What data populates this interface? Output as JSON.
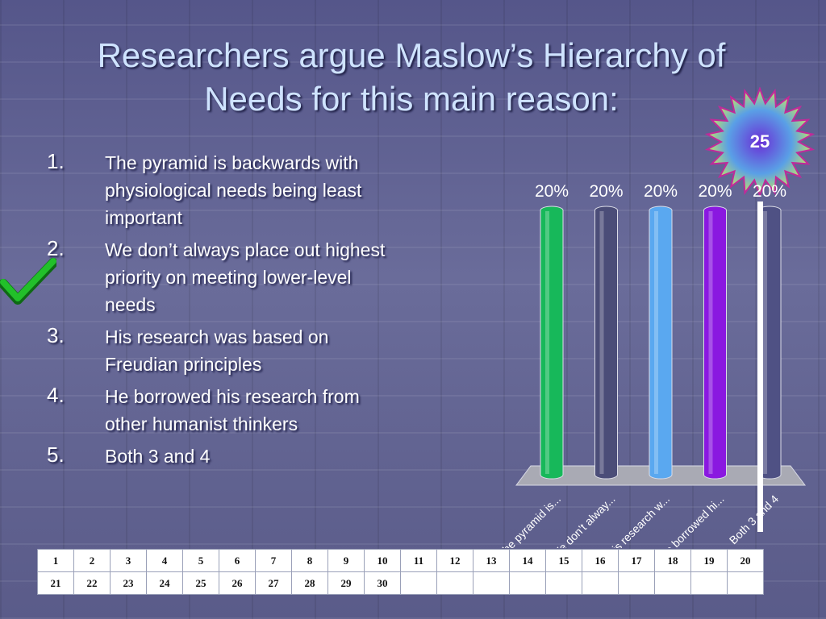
{
  "slide": {
    "title_line1": "Researchers argue Maslow’s Hierarchy of",
    "title_line2": "Needs for this main reason:",
    "countdown": "25",
    "correct_answer": 2,
    "colors": {
      "title": "#cfe3ff",
      "check": "#22c02a",
      "badge": "#6a2fd6"
    }
  },
  "answers": [
    {
      "number": "1.",
      "text": "The pyramid is backwards with physiological needs being least important"
    },
    {
      "number": "2.",
      "text": "We don’t always place out highest priority on meeting lower-level needs"
    },
    {
      "number": "3.",
      "text": "His research was based on Freudian principles"
    },
    {
      "number": "4.",
      "text": "He borrowed his research from other humanist thinkers"
    },
    {
      "number": "5.",
      "text": "Both 3 and 4"
    }
  ],
  "chart_data": {
    "type": "bar",
    "categories": [
      "The pyramid is...",
      "We don’t alway...",
      "His research w...",
      "He borrowed hi...",
      "Both 3 and 4"
    ],
    "values": [
      20,
      20,
      20,
      20,
      20
    ],
    "value_labels": [
      "20%",
      "20%",
      "20%",
      "20%",
      "20%"
    ],
    "colors": [
      "#17b85a",
      "#4b4d78",
      "#5aa8f0",
      "#8a18e0",
      "#4f5184"
    ],
    "ylim": [
      0,
      20
    ],
    "grid": false,
    "legend": "none",
    "title": "",
    "xlabel": "",
    "ylabel": ""
  },
  "response_grid": {
    "rows": [
      [
        "1",
        "2",
        "3",
        "4",
        "5",
        "6",
        "7",
        "8",
        "9",
        "10",
        "11",
        "12",
        "13",
        "14",
        "15",
        "16",
        "17",
        "18",
        "19",
        "20"
      ],
      [
        "21",
        "22",
        "23",
        "24",
        "25",
        "26",
        "27",
        "28",
        "29",
        "30",
        "",
        "",
        "",
        "",
        "",
        "",
        "",
        "",
        "",
        ""
      ]
    ]
  }
}
